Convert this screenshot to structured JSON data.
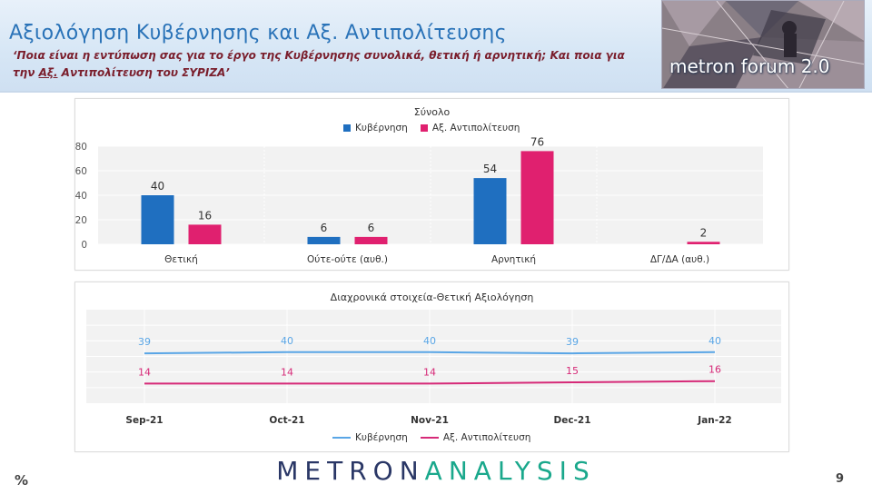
{
  "header": {
    "title": "Αξιολόγηση Κυβέρνησης και Αξ. Αντιπολίτευσης",
    "subtitle_part1": "‘Ποια είναι η εντύπωση σας για το έργο της Κυβέρνησης συνολικά, θετική ή αρνητική; Και ποια για την ",
    "subtitle_highlight": "Αξ.",
    "subtitle_part2": " Αντιπολίτευση του ΣΥΡΙΖΑ’",
    "logo_text": "metron forum 2.0"
  },
  "colors": {
    "government": "#1f6fc0",
    "opposition": "#e0206f",
    "government_line": "#5aa6e6",
    "opposition_line": "#d62a78"
  },
  "chart_data": [
    {
      "type": "bar",
      "title": "Σύνολο",
      "categories": [
        "Θετική",
        "Ούτε-ούτε (αυθ.)",
        "Αρνητική",
        "ΔΓ/ΔΑ (αυθ.)"
      ],
      "series": [
        {
          "name": "Κυβέρνηση",
          "values": [
            40,
            6,
            54,
            null
          ]
        },
        {
          "name": "Αξ. Αντιπολίτευση",
          "values": [
            16,
            6,
            76,
            2
          ]
        }
      ],
      "ylim": [
        0,
        80
      ],
      "yticks": [
        "0",
        "20",
        "40",
        "60",
        "80"
      ],
      "legend": "top",
      "grid": true
    },
    {
      "type": "line",
      "title": "Διαχρονικά στοιχεία-Θετική Αξιολόγηση",
      "categories": [
        "Sep-21",
        "Oct-21",
        "Nov-21",
        "Dec-21",
        "Jan-22"
      ],
      "series": [
        {
          "name": "Κυβέρνηση",
          "values": [
            39,
            40,
            40,
            39,
            40
          ]
        },
        {
          "name": "Αξ. Αντιπολίτευση",
          "values": [
            14,
            14,
            14,
            15,
            16
          ]
        }
      ],
      "legend": "bottom",
      "grid": true
    }
  ],
  "footer": {
    "brand_part1": "METRON",
    "brand_part2": "ANALYSIS",
    "unit": "%",
    "page_number": "9"
  }
}
